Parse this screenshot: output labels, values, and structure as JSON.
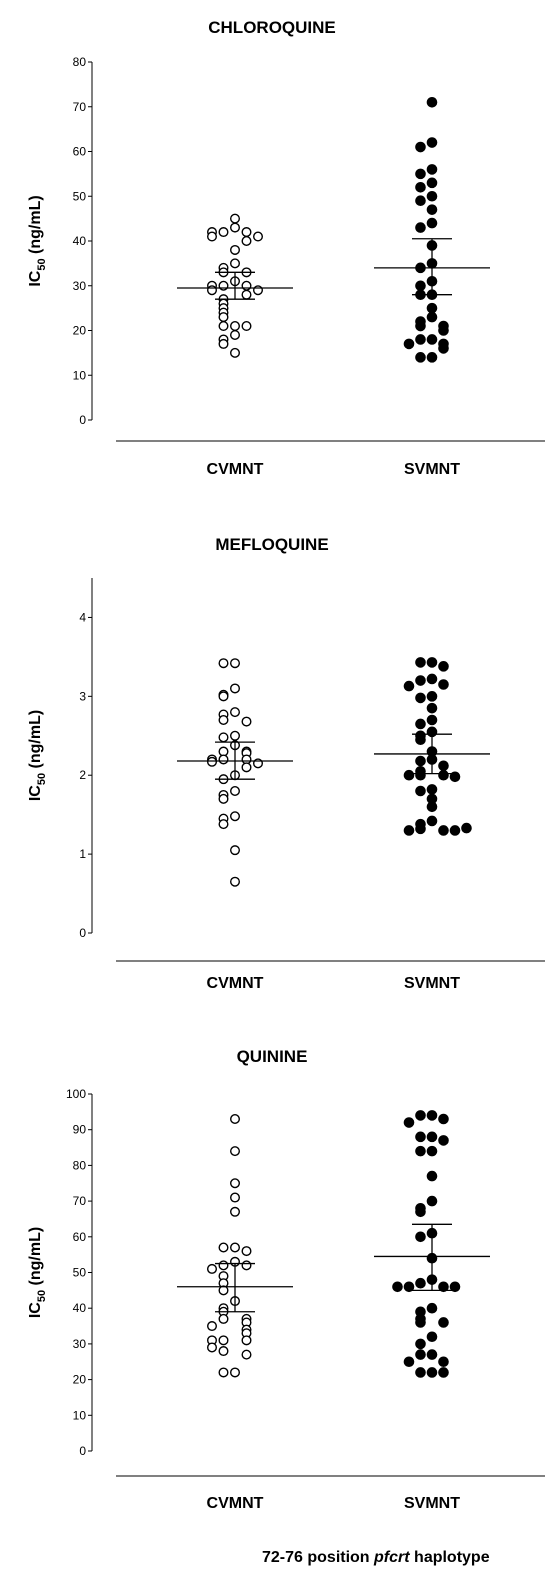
{
  "chart_data": [
    {
      "type": "scatter",
      "title": "CHLOROQUINE",
      "ylabel": "IC50 (ng/mL)",
      "ylim": [
        0,
        80
      ],
      "yticks": [
        0,
        10,
        20,
        30,
        40,
        50,
        60,
        70,
        80
      ],
      "categories": [
        "CVMNT",
        "SVMNT"
      ],
      "grid": false,
      "series": [
        {
          "category": "CVMNT",
          "marker": "open-circle",
          "values": [
            45,
            43,
            42,
            42,
            42,
            41,
            41,
            40,
            38,
            35,
            34,
            33,
            33,
            31,
            30,
            30,
            30,
            29,
            29,
            28,
            27,
            26,
            25,
            24,
            23,
            21,
            21,
            21,
            19,
            18,
            17,
            15
          ],
          "mean": 29.5,
          "error": [
            27,
            33
          ]
        },
        {
          "category": "SVMNT",
          "marker": "filled-circle",
          "values": [
            71,
            62,
            61,
            56,
            55,
            53,
            52,
            50,
            49,
            47,
            44,
            43,
            39,
            35,
            34,
            31,
            30,
            28,
            28,
            25,
            23,
            22,
            21,
            21,
            20,
            18,
            18,
            17,
            17,
            16,
            14,
            14
          ],
          "mean": 34,
          "error": [
            28,
            40.5
          ]
        }
      ]
    },
    {
      "type": "scatter",
      "title": "MEFLOQUINE",
      "ylabel": "IC50 (ng/mL)",
      "ylim": [
        0,
        4.5
      ],
      "yticks": [
        0,
        1,
        2,
        3,
        4
      ],
      "categories": [
        "CVMNT",
        "SVMNT"
      ],
      "grid": false,
      "series": [
        {
          "category": "CVMNT",
          "marker": "open-circle",
          "values": [
            3.42,
            3.42,
            3.1,
            3.02,
            3.0,
            2.8,
            2.77,
            2.7,
            2.68,
            2.5,
            2.48,
            2.38,
            2.3,
            2.3,
            2.28,
            2.2,
            2.2,
            2.2,
            2.17,
            2.15,
            2.1,
            2.0,
            1.95,
            1.8,
            1.75,
            1.7,
            1.48,
            1.45,
            1.38,
            1.05,
            0.65
          ],
          "mean": 2.18,
          "error": [
            1.95,
            2.42
          ]
        },
        {
          "category": "SVMNT",
          "marker": "filled-circle",
          "values": [
            3.43,
            3.43,
            3.38,
            3.22,
            3.2,
            3.15,
            3.13,
            3.0,
            2.98,
            2.85,
            2.7,
            2.65,
            2.55,
            2.5,
            2.45,
            2.3,
            2.2,
            2.18,
            2.12,
            2.05,
            2.0,
            2.0,
            2.0,
            1.98,
            1.82,
            1.8,
            1.7,
            1.6,
            1.42,
            1.38,
            1.32,
            1.3,
            1.3,
            1.3,
            1.33
          ],
          "mean": 2.27,
          "error": [
            2.02,
            2.52
          ]
        }
      ]
    },
    {
      "type": "scatter",
      "title": "QUININE",
      "ylabel": "IC50 (ng/mL)",
      "ylim": [
        0,
        100
      ],
      "yticks": [
        0,
        10,
        20,
        30,
        40,
        50,
        60,
        70,
        80,
        90,
        100
      ],
      "categories": [
        "CVMNT",
        "SVMNT"
      ],
      "grid": false,
      "series": [
        {
          "category": "CVMNT",
          "marker": "open-circle",
          "values": [
            93,
            84,
            75,
            71,
            67,
            57,
            57,
            56,
            53,
            52,
            52,
            51,
            49,
            47,
            45,
            42,
            40,
            39,
            37,
            37,
            36,
            35,
            34,
            33,
            31,
            31,
            31,
            29,
            28,
            27,
            22,
            22
          ],
          "mean": 46,
          "error": [
            39,
            52.5
          ]
        },
        {
          "category": "SVMNT",
          "marker": "filled-circle",
          "values": [
            94,
            94,
            93,
            92,
            88,
            88,
            87,
            84,
            84,
            77,
            70,
            68,
            67,
            61,
            60,
            54,
            48,
            47,
            46,
            46,
            46,
            46,
            40,
            39,
            37,
            36,
            36,
            32,
            30,
            27,
            27,
            25,
            25,
            22,
            22,
            22
          ],
          "mean": 54.5,
          "error": [
            45,
            63.5
          ]
        }
      ]
    }
  ],
  "xlabel_prefix": "72-76 position ",
  "xlabel_gene": "pfcrt",
  "xlabel_suffix": " haplotype"
}
